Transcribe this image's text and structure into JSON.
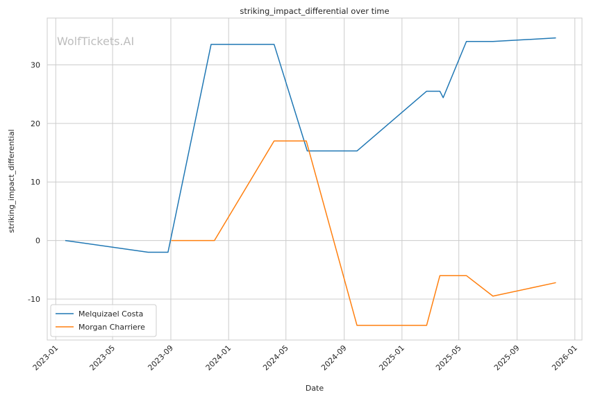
{
  "chart_data": {
    "type": "line",
    "title": "striking_impact_differential over time",
    "xlabel": "Date",
    "ylabel": "striking_impact_differential",
    "watermark": "WolfTickets.AI",
    "x_range": [
      "2022-12-14",
      "2026-01-16"
    ],
    "ylim": [
      -17,
      38
    ],
    "x_ticks": [
      {
        "date": "2023-01-01",
        "label": "2023-01"
      },
      {
        "date": "2023-05-01",
        "label": "2023-05"
      },
      {
        "date": "2023-09-01",
        "label": "2023-09"
      },
      {
        "date": "2024-01-01",
        "label": "2024-01"
      },
      {
        "date": "2024-05-01",
        "label": "2024-05"
      },
      {
        "date": "2024-09-01",
        "label": "2024-09"
      },
      {
        "date": "2025-01-01",
        "label": "2025-01"
      },
      {
        "date": "2025-05-01",
        "label": "2025-05"
      },
      {
        "date": "2025-09-01",
        "label": "2025-09"
      },
      {
        "date": "2026-01-01",
        "label": "2026-01"
      }
    ],
    "y_ticks": [
      -10,
      0,
      10,
      20,
      30
    ],
    "grid": true,
    "legend_position": "lower-left",
    "series": [
      {
        "name": "Melquizael Costa",
        "color": "#1f77b4",
        "points": [
          {
            "x": "2023-01-21",
            "y": 0
          },
          {
            "x": "2023-07-15",
            "y": -2
          },
          {
            "x": "2023-08-26",
            "y": -2
          },
          {
            "x": "2023-11-25",
            "y": 33.5
          },
          {
            "x": "2024-04-06",
            "y": 33.5
          },
          {
            "x": "2024-06-15",
            "y": 15.3
          },
          {
            "x": "2024-09-28",
            "y": 15.3
          },
          {
            "x": "2025-02-22",
            "y": 25.5
          },
          {
            "x": "2025-03-22",
            "y": 25.5
          },
          {
            "x": "2025-03-29",
            "y": 24.4
          },
          {
            "x": "2025-05-17",
            "y": 34
          },
          {
            "x": "2025-07-12",
            "y": 34
          },
          {
            "x": "2025-11-22",
            "y": 34.6
          }
        ]
      },
      {
        "name": "Morgan Charriere",
        "color": "#ff7f0e",
        "points": [
          {
            "x": "2023-09-02",
            "y": 0
          },
          {
            "x": "2023-12-02",
            "y": 0
          },
          {
            "x": "2024-04-06",
            "y": 17
          },
          {
            "x": "2024-06-13",
            "y": 17
          },
          {
            "x": "2024-09-28",
            "y": -14.5
          },
          {
            "x": "2025-02-22",
            "y": -14.5
          },
          {
            "x": "2025-03-22",
            "y": -6
          },
          {
            "x": "2025-05-17",
            "y": -6
          },
          {
            "x": "2025-07-12",
            "y": -9.5
          },
          {
            "x": "2025-11-22",
            "y": -7.2
          }
        ]
      }
    ]
  }
}
